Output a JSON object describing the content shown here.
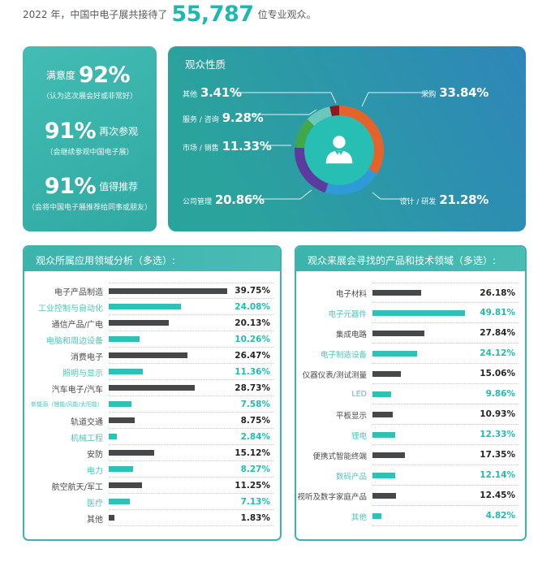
{
  "intro": {
    "prefix": "2022 年，中国中电子展共接待了",
    "number": "55,787",
    "suffix": "位专业观众。"
  },
  "stats_card": {
    "items": [
      {
        "pre": "满意度",
        "big": "92%",
        "post": "",
        "note": "（认为这次展会好或非常好）"
      },
      {
        "pre": "",
        "big": "91%",
        "post": "再次参观",
        "note": "（会继续参观中国电子展）"
      },
      {
        "pre": "",
        "big": "91%",
        "post": "值得推荐",
        "note": "（会将中国电子展推荐给同事或朋友）"
      }
    ]
  },
  "colors": {
    "accent_teal": "#2fb3ab",
    "number_teal": "#1db9ae",
    "dark_bar": "#47484a",
    "teal_bar": "#2ec2b6"
  },
  "chart_data": [
    {
      "type": "pie",
      "style": "donut",
      "title": "观众性质",
      "center_icon": "person-icon",
      "legend_position": "callout-labels",
      "segments": [
        {
          "label": "采购",
          "value": 33.84,
          "pct": "33.84%",
          "color": "#e4632b"
        },
        {
          "label": "设计 / 研发",
          "value": 21.28,
          "pct": "21.28%",
          "color": "#2e9bd6"
        },
        {
          "label": "公司管理",
          "value": 20.86,
          "pct": "20.86%",
          "color": "#5c3a9e"
        },
        {
          "label": "市场 / 销售",
          "value": 11.33,
          "pct": "11.33%",
          "color": "#3fa84c"
        },
        {
          "label": "服务 / 咨询",
          "value": 9.28,
          "pct": "9.28%",
          "color": "#6ac9bb"
        },
        {
          "label": "其他",
          "value": 3.41,
          "pct": "3.41%",
          "color": "#8c1a22"
        }
      ]
    },
    {
      "type": "bar",
      "orientation": "horizontal",
      "title": "观众所属应用领域分析（多选）:",
      "xmax": 41,
      "bar_colors_alternate": [
        "#47484a",
        "#2ec2b6"
      ],
      "categories": [
        "电子产品制造",
        "工业控制与自动化",
        "通信产品/广电",
        "电脑和周边设备",
        "消费电子",
        "照明与显示",
        "汽车电子/汽车",
        "新能源（锂能/风能/太阳能）",
        "轨道交通",
        "机械工程",
        "安防",
        "电力",
        "航空航天/军工",
        "医疗",
        "其他"
      ],
      "values": [
        39.75,
        24.08,
        20.13,
        10.26,
        26.47,
        11.36,
        28.73,
        7.58,
        8.75,
        2.84,
        15.12,
        8.27,
        11.25,
        7.13,
        1.83
      ]
    },
    {
      "type": "bar",
      "orientation": "horizontal",
      "title": "观众来展会寻找的产品和技术领域（多选）:",
      "xmax": 55,
      "bar_colors_alternate": [
        "#47484a",
        "#2ec2b6"
      ],
      "categories": [
        "电子材料",
        "电子元器件",
        "集成电路",
        "电子制造设备",
        "仪器仪表/测试测量",
        "LED",
        "平板显示",
        "锂电",
        "便携式智能终端",
        "数码产品",
        "视听及数字家庭产品",
        "其他"
      ],
      "values": [
        26.18,
        49.81,
        27.84,
        24.12,
        15.06,
        9.86,
        10.93,
        12.33,
        17.35,
        12.14,
        12.45,
        4.82
      ]
    }
  ]
}
